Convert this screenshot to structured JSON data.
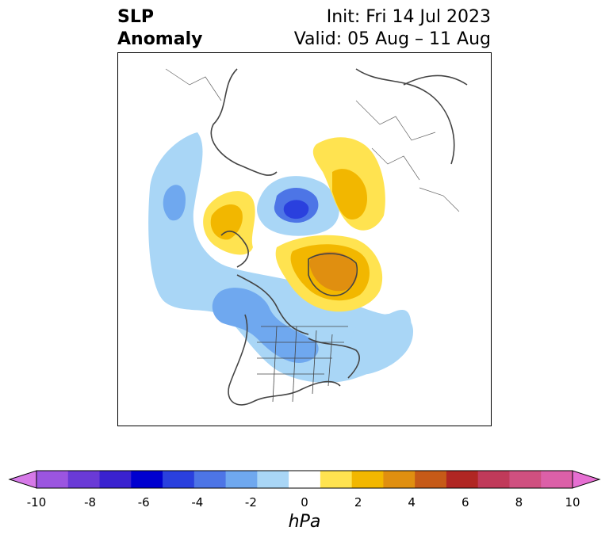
{
  "title": {
    "left_line1": "SLP",
    "left_line2": "Anomaly",
    "right_line1": "Init: Fri 14 Jul 2023",
    "right_line2": "Valid: 05 Aug – 11 Aug"
  },
  "colorbar": {
    "unit": "hPa",
    "min": -10,
    "max": 10,
    "extend": "both",
    "tick_labels": [
      "-10",
      "-8",
      "-6",
      "-4",
      "-2",
      "0",
      "2",
      "4",
      "6",
      "8",
      "10"
    ],
    "colors": [
      "#d679e8",
      "#9b55e0",
      "#6a3ad6",
      "#3a22cf",
      "#0000cf",
      "#2a40de",
      "#4d75e6",
      "#6fa8ef",
      "#a9d6f6",
      "#ffffff",
      "#ffe350",
      "#f2b700",
      "#e08f10",
      "#c65a18",
      "#b02623",
      "#c03a5a",
      "#cf5080",
      "#dc60a8",
      "#e66fd2"
    ]
  },
  "map": {
    "projection": "north-polar-stereographic",
    "features": [
      "coastlines",
      "country-borders",
      "us-state-borders"
    ],
    "anomaly_regions": [
      {
        "name": "negative-anomaly-arctic-center",
        "min_value": -6
      },
      {
        "name": "negative-anomaly-north-pacific",
        "min_value": -4
      },
      {
        "name": "negative-anomaly-gulf-of-alaska",
        "min_value": -4
      },
      {
        "name": "negative-anomaly-canada-usa",
        "min_value": -4
      },
      {
        "name": "negative-anomaly-north-atlantic",
        "min_value": -2
      },
      {
        "name": "positive-anomaly-siberia",
        "max_value": 4
      },
      {
        "name": "positive-anomaly-greenland",
        "max_value": 6
      },
      {
        "name": "positive-anomaly-east-siberia-alaska",
        "max_value": 4
      }
    ]
  }
}
